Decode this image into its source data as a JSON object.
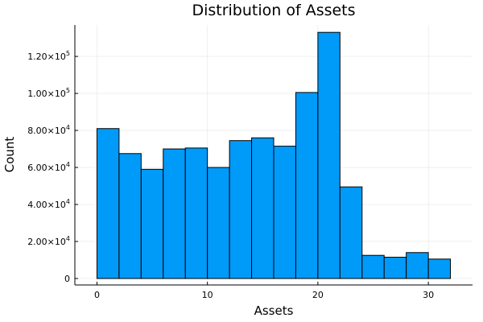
{
  "chart_data": {
    "type": "bar",
    "title": "Distribution of Assets",
    "xlabel": "Assets",
    "ylabel": "Count",
    "bar_color": "#009af9",
    "bin_edges": [
      0,
      2,
      4,
      6,
      8,
      10,
      12,
      14,
      16,
      18,
      20,
      22,
      24,
      26,
      28,
      30,
      32
    ],
    "values": [
      81000,
      67500,
      59000,
      70000,
      70500,
      60000,
      74500,
      76000,
      71500,
      100500,
      133000,
      49500,
      12500,
      11500,
      14000,
      10500
    ],
    "xlim": [
      -2,
      34
    ],
    "ylim": [
      -3500,
      137000
    ],
    "x_ticks": [
      {
        "value": 0,
        "label": "0"
      },
      {
        "value": 10,
        "label": "10"
      },
      {
        "value": 20,
        "label": "20"
      },
      {
        "value": 30,
        "label": "30"
      }
    ],
    "y_ticks": [
      {
        "value": 0,
        "base": "0",
        "exp": ""
      },
      {
        "value": 20000,
        "base": "2.00×10",
        "exp": "4"
      },
      {
        "value": 40000,
        "base": "4.00×10",
        "exp": "4"
      },
      {
        "value": 60000,
        "base": "6.00×10",
        "exp": "4"
      },
      {
        "value": 80000,
        "base": "8.00×10",
        "exp": "4"
      },
      {
        "value": 100000,
        "base": "1.00×10",
        "exp": "5"
      },
      {
        "value": 120000,
        "base": "1.20×10",
        "exp": "5"
      }
    ],
    "grid": true,
    "legend": "none"
  }
}
